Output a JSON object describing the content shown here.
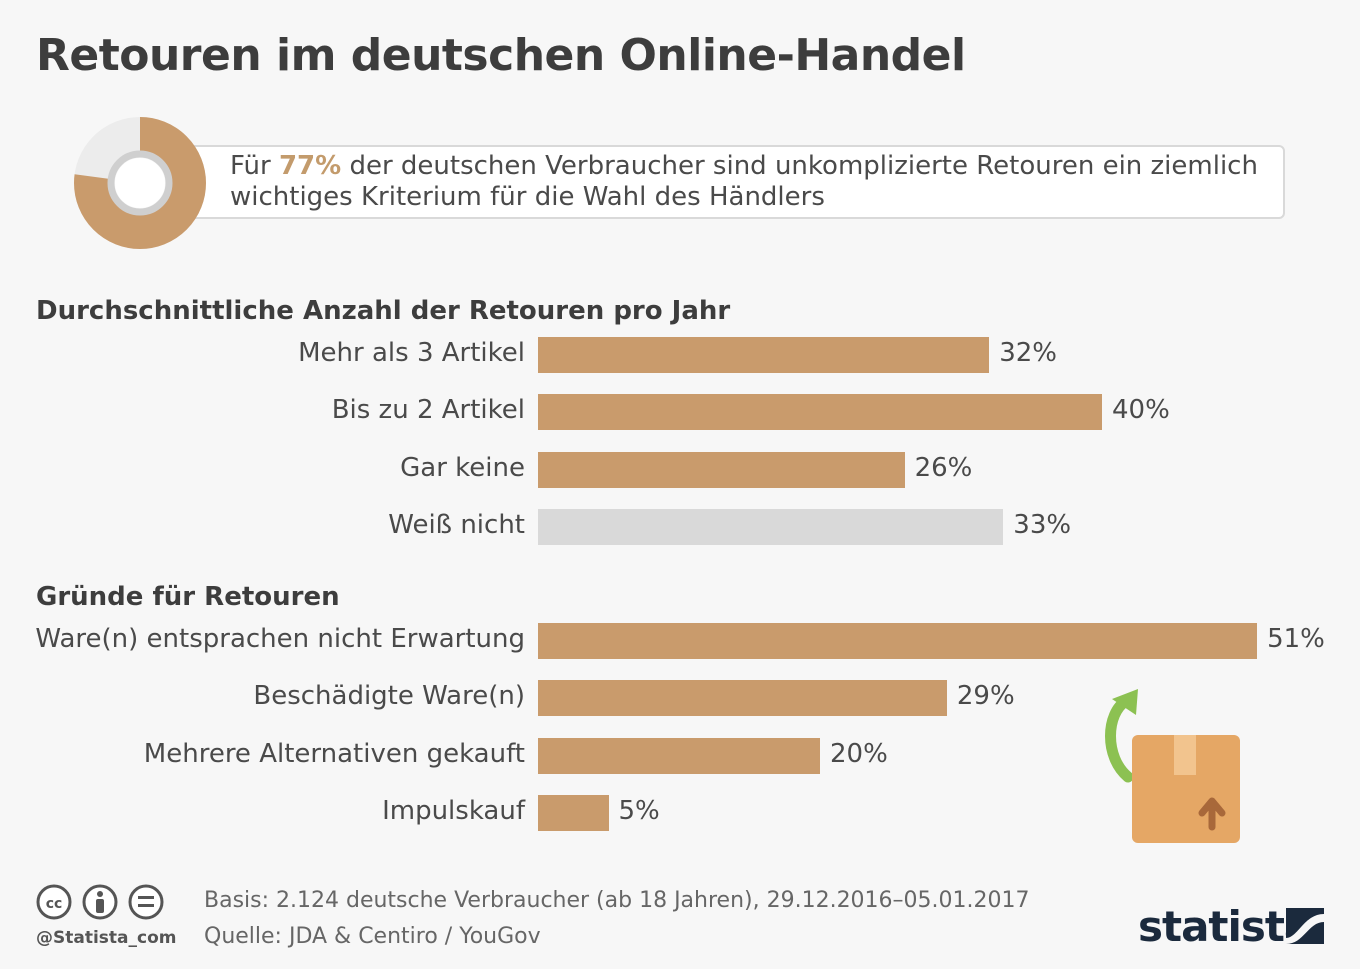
{
  "title": "Retouren im deutschen Online-Handel",
  "highlight": {
    "prefix": "Für ",
    "percent": "77%",
    "percent_value": 77,
    "suffix": " der deutschen Verbraucher sind unkomplizierte Retouren ein ziemlich wichtiges Kriterium für die Wahl des Händlers"
  },
  "colors": {
    "accent": "#c99b6c",
    "accent_highlight": "#c39b6c",
    "neutral": "#d9d9d9",
    "donut_rest": "#ececec",
    "arrow": "#8cc152",
    "box": "#e5a765",
    "brand": "#1b2a3d"
  },
  "chart_data": [
    {
      "type": "bar",
      "orientation": "horizontal",
      "title": "Durchschnittliche Anzahl der Retouren pro Jahr",
      "categories": [
        "Mehr als 3 Artikel",
        "Bis zu 2 Artikel",
        "Gar keine",
        "Weiß nicht"
      ],
      "values": [
        32,
        40,
        26,
        33
      ],
      "value_labels": [
        "32%",
        "40%",
        "26%",
        "33%"
      ],
      "unit": "%",
      "grid": false
    },
    {
      "type": "bar",
      "orientation": "horizontal",
      "title": "Gründe für Retouren",
      "categories": [
        "Ware(n) entsprachen nicht Erwartung",
        "Beschädigte Ware(n)",
        "Mehrere Alternativen gekauft",
        "Impulskauf"
      ],
      "values": [
        51,
        29,
        20,
        5
      ],
      "value_labels": [
        "51%",
        "29%",
        "20%",
        "5%"
      ],
      "unit": "%",
      "grid": false
    }
  ],
  "footer": {
    "handle": "@Statista_com",
    "basis": "Basis: 2.124 deutsche Verbraucher (ab 18 Jahren), 29.12.2016–05.01.2017",
    "source": "Quelle: JDA & Centiro / YouGov",
    "brand": "statista",
    "license_icons": [
      "cc-icon",
      "by-icon",
      "nd-icon"
    ]
  }
}
